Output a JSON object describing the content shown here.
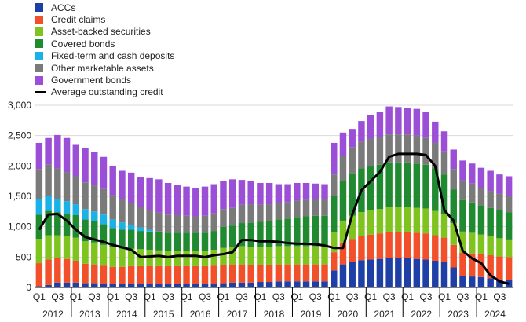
{
  "chart_data": {
    "type": "bar",
    "stacked": true,
    "title": "",
    "xlabel": "",
    "ylabel": "",
    "ylim": [
      0,
      3000
    ],
    "yticks": [
      0,
      500,
      1000,
      1500,
      2000,
      2500,
      3000
    ],
    "ytick_labels": [
      "0",
      "500",
      "1,000",
      "1,500",
      "2,000",
      "2,500",
      "3,000"
    ],
    "quarter_labels": [
      "Q1",
      "Q3"
    ],
    "years": [
      "2012",
      "2013",
      "2014",
      "2015",
      "2016",
      "2017",
      "2018",
      "2019",
      "2020",
      "2021",
      "2022",
      "2023",
      "2024"
    ],
    "categories": [
      "2012 Q1",
      "2012 Q2",
      "2012 Q3",
      "2012 Q4",
      "2013 Q1",
      "2013 Q2",
      "2013 Q3",
      "2013 Q4",
      "2014 Q1",
      "2014 Q2",
      "2014 Q3",
      "2014 Q4",
      "2015 Q1",
      "2015 Q2",
      "2015 Q3",
      "2015 Q4",
      "2016 Q1",
      "2016 Q2",
      "2016 Q3",
      "2016 Q4",
      "2017 Q1",
      "2017 Q2",
      "2017 Q3",
      "2017 Q4",
      "2018 Q1",
      "2018 Q2",
      "2018 Q3",
      "2018 Q4",
      "2019 Q1",
      "2019 Q2",
      "2019 Q3",
      "2019 Q4",
      "2020 Q1",
      "2020 Q2",
      "2020 Q3",
      "2020 Q4",
      "2021 Q1",
      "2021 Q2",
      "2021 Q3",
      "2021 Q4",
      "2022 Q1",
      "2022 Q2",
      "2022 Q3",
      "2022 Q4",
      "2023 Q1",
      "2023 Q2",
      "2023 Q3",
      "2023 Q4",
      "2024 Q1",
      "2024 Q2",
      "2024 Q3",
      "2024 Q4"
    ],
    "series": [
      {
        "name": "ACCs",
        "color": "#1d3fa6",
        "values": [
          20,
          40,
          80,
          80,
          80,
          70,
          70,
          60,
          60,
          60,
          60,
          60,
          60,
          60,
          60,
          60,
          60,
          60,
          60,
          60,
          70,
          80,
          80,
          80,
          90,
          90,
          100,
          100,
          100,
          100,
          100,
          100,
          280,
          380,
          420,
          450,
          460,
          470,
          480,
          480,
          480,
          470,
          460,
          440,
          420,
          330,
          190,
          180,
          170,
          150,
          130,
          120
        ]
      },
      {
        "name": "Credit claims",
        "color": "#f2502a",
        "values": [
          380,
          420,
          400,
          390,
          360,
          320,
          310,
          300,
          280,
          280,
          290,
          290,
          290,
          290,
          290,
          290,
          290,
          290,
          290,
          300,
          300,
          300,
          300,
          290,
          280,
          280,
          280,
          280,
          280,
          280,
          280,
          280,
          300,
          360,
          380,
          400,
          410,
          420,
          430,
          430,
          430,
          430,
          430,
          420,
          400,
          370,
          380,
          380,
          380,
          380,
          380,
          380
        ]
      },
      {
        "name": "Asset-backed securities",
        "color": "#7fc41e",
        "values": [
          400,
          400,
          380,
          380,
          380,
          370,
          360,
          340,
          320,
          300,
          290,
          280,
          270,
          260,
          250,
          250,
          250,
          250,
          250,
          260,
          280,
          290,
          300,
          300,
          300,
          300,
          300,
          300,
          300,
          300,
          300,
          300,
          330,
          360,
          380,
          390,
          400,
          400,
          410,
          410,
          410,
          410,
          410,
          400,
          390,
          360,
          350,
          340,
          320,
          310,
          300,
          290
        ]
      },
      {
        "name": "Covered bonds",
        "color": "#1f8a2f",
        "values": [
          400,
          400,
          380,
          370,
          370,
          360,
          350,
          340,
          320,
          310,
          310,
          300,
          300,
          300,
          300,
          300,
          300,
          300,
          300,
          310,
          350,
          350,
          380,
          400,
          410,
          420,
          440,
          450,
          480,
          490,
          500,
          500,
          600,
          650,
          700,
          720,
          730,
          730,
          740,
          740,
          740,
          730,
          720,
          700,
          650,
          550,
          520,
          500,
          480,
          470,
          460,
          450
        ]
      },
      {
        "name": "Fixed-term and cash deposits",
        "color": "#1ab2e6",
        "values": [
          250,
          240,
          220,
          200,
          180,
          170,
          160,
          160,
          140,
          120,
          80,
          60,
          30,
          10,
          0,
          0,
          0,
          0,
          0,
          0,
          0,
          0,
          0,
          0,
          0,
          0,
          0,
          0,
          0,
          0,
          0,
          0,
          0,
          0,
          0,
          0,
          0,
          0,
          0,
          0,
          0,
          0,
          0,
          0,
          0,
          0,
          0,
          0,
          0,
          0,
          0,
          0
        ]
      },
      {
        "name": "Other marketable assets",
        "color": "#7a7a7a",
        "values": [
          500,
          520,
          500,
          480,
          460,
          440,
          430,
          420,
          400,
          380,
          360,
          340,
          320,
          310,
          300,
          290,
          280,
          270,
          280,
          290,
          290,
          290,
          300,
          300,
          280,
          280,
          270,
          270,
          270,
          270,
          270,
          270,
          350,
          420,
          430,
          440,
          450,
          450,
          460,
          460,
          460,
          460,
          440,
          420,
          380,
          340,
          320,
          310,
          290,
          280,
          270,
          270
        ]
      },
      {
        "name": "Government bonds",
        "color": "#9b4fd6",
        "values": [
          430,
          440,
          550,
          560,
          530,
          560,
          550,
          530,
          480,
          470,
          500,
          480,
          530,
          550,
          520,
          500,
          480,
          470,
          480,
          480,
          460,
          470,
          410,
          380,
          360,
          350,
          310,
          300,
          290,
          280,
          260,
          250,
          520,
          380,
          300,
          340,
          390,
          420,
          460,
          450,
          430,
          440,
          430,
          350,
          330,
          320,
          330,
          330,
          330,
          330,
          320,
          320
        ]
      }
    ],
    "line": {
      "name": "Average outstanding credit",
      "color": "#000000",
      "values": [
        950,
        1200,
        1210,
        1100,
        950,
        830,
        790,
        750,
        700,
        660,
        620,
        500,
        510,
        520,
        500,
        520,
        520,
        520,
        500,
        530,
        550,
        580,
        780,
        780,
        760,
        760,
        750,
        730,
        720,
        720,
        710,
        690,
        650,
        650,
        1200,
        1600,
        1750,
        1900,
        2150,
        2200,
        2200,
        2200,
        2180,
        2000,
        1270,
        1100,
        600,
        480,
        400,
        200,
        100,
        60
      ]
    }
  }
}
